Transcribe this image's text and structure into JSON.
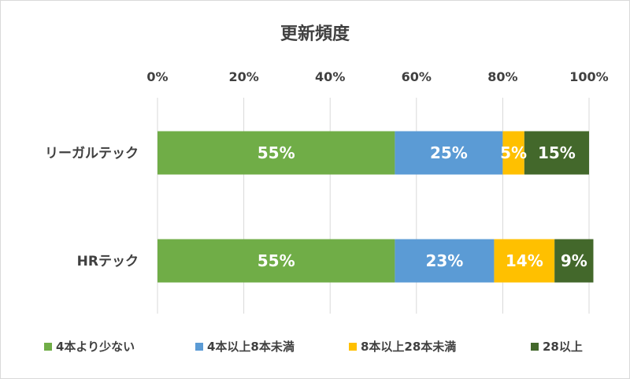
{
  "chart_data": {
    "type": "bar",
    "orientation": "horizontal",
    "stacked": "percent",
    "title": "更新頻度",
    "categories": [
      "リーガルテック",
      "HRテック"
    ],
    "series": [
      {
        "name": "4本より少ない",
        "color": "#70ad47",
        "values": [
          55,
          55
        ],
        "labels": [
          "55%",
          "55%"
        ]
      },
      {
        "name": "4本以上8本未満",
        "color": "#5b9bd5",
        "values": [
          25,
          23
        ],
        "labels": [
          "25%",
          "23%"
        ]
      },
      {
        "name": "8本以上28本未満",
        "color": "#ffc000",
        "values": [
          5,
          14
        ],
        "labels": [
          "5%",
          "14%"
        ]
      },
      {
        "name": "28以上",
        "color": "#43682b",
        "values": [
          15,
          9
        ],
        "labels": [
          "15%",
          "9%"
        ]
      }
    ],
    "x_ticks": [
      "0%",
      "20%",
      "40%",
      "60%",
      "80%",
      "100%"
    ],
    "xlim": [
      0,
      100
    ],
    "axis_position": "top",
    "grid": true,
    "legend_position": "bottom"
  }
}
